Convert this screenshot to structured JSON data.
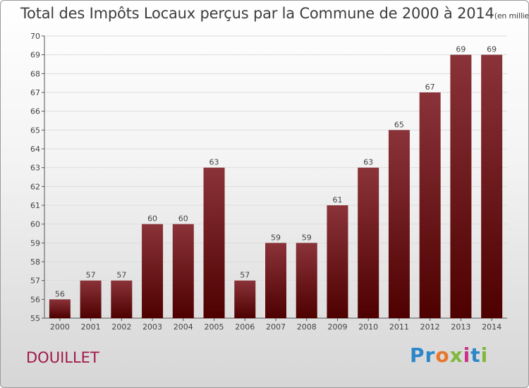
{
  "header": {
    "title": "Total des Impôts Locaux perçus par la Commune de 2000 à 2014",
    "unit": "(en milliers d'€)"
  },
  "commune": "DOUILLET",
  "logo": {
    "text": "Proxiti",
    "colors": [
      "#2c87c9",
      "#e8762a",
      "#7fb83a",
      "#c8328b"
    ]
  },
  "colors": {
    "bar_top": "#8a3339",
    "bar_bottom": "#4e0000",
    "grid": "#dddddd"
  },
  "chart_data": {
    "type": "bar",
    "title": "Total des Impôts Locaux perçus par la Commune de 2000 à 2014",
    "xlabel": "",
    "ylabel": "en milliers d'€",
    "categories": [
      "2000",
      "2001",
      "2002",
      "2003",
      "2004",
      "2005",
      "2006",
      "2007",
      "2008",
      "2009",
      "2010",
      "2011",
      "2012",
      "2013",
      "2014"
    ],
    "values": [
      56,
      57,
      57,
      60,
      60,
      63,
      57,
      59,
      59,
      61,
      63,
      65,
      67,
      69,
      69
    ],
    "ylim": [
      55,
      70
    ],
    "yticks": [
      55,
      56,
      57,
      58,
      59,
      60,
      61,
      62,
      63,
      64,
      65,
      66,
      67,
      68,
      69,
      70
    ],
    "grid": true
  }
}
